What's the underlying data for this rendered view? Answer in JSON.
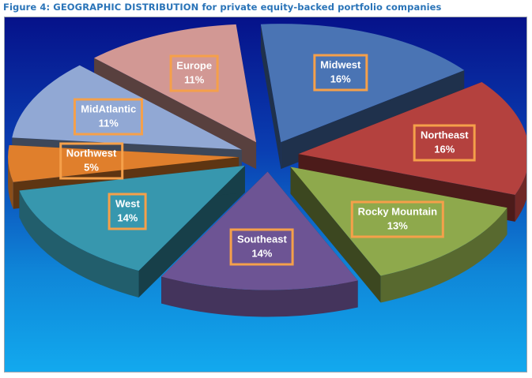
{
  "title": "Figure 4: GEOGRAPHIC DISTRIBUTION  for private equity-backed portfolio companies",
  "chart_data": {
    "type": "pie",
    "style": "3d-exploded",
    "slices": [
      {
        "label": "Midwest",
        "value": 16,
        "value_label": "16%",
        "color": "#4a74b4"
      },
      {
        "label": "Northeast",
        "value": 16,
        "value_label": "16%",
        "color": "#b4413e"
      },
      {
        "label": "Rocky Mountain",
        "value": 13,
        "value_label": "13%",
        "color": "#8ea94c"
      },
      {
        "label": "Southeast",
        "value": 14,
        "value_label": "14%",
        "color": "#6d5494"
      },
      {
        "label": "West",
        "value": 14,
        "value_label": "14%",
        "color": "#3797ae"
      },
      {
        "label": "Northwest",
        "value": 5,
        "value_label": "5%",
        "color": "#e07f2c"
      },
      {
        "label": "MidAtlantic",
        "value": 11,
        "value_label": "11%",
        "color": "#91a8d4"
      },
      {
        "label": "Europe",
        "value": 11,
        "value_label": "11%",
        "color": "#d29894"
      }
    ],
    "legend": "none",
    "label_border_color": "#f5a04a"
  }
}
